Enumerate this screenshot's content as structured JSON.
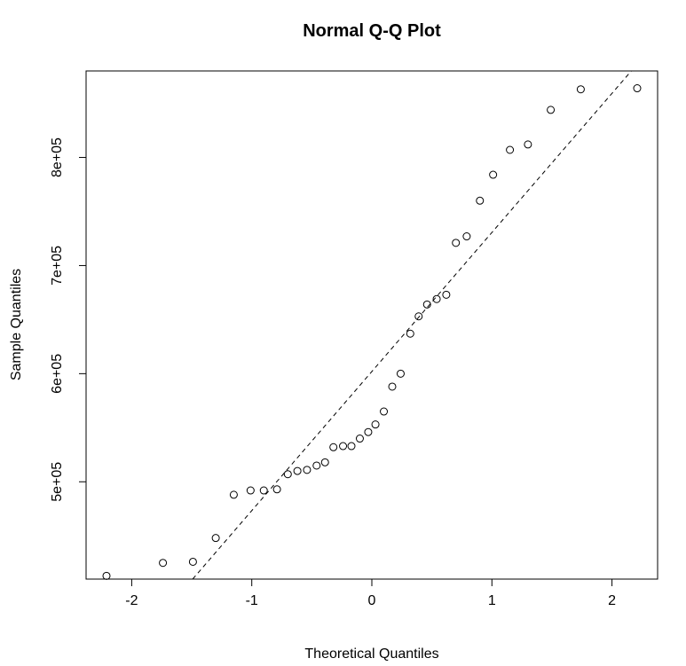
{
  "chart_data": {
    "type": "scatter",
    "title": "Normal Q-Q Plot",
    "xlabel": "Theoretical Quantiles",
    "ylabel": "Sample Quantiles",
    "xlim": [
      -2.38,
      2.38
    ],
    "ylim": [
      410000,
      880000
    ],
    "x_ticks": [
      -2,
      -1,
      0,
      1,
      2
    ],
    "x_tick_labels": [
      "-2",
      "-1",
      "0",
      "1",
      "2"
    ],
    "y_ticks": [
      500000,
      600000,
      700000,
      800000
    ],
    "y_tick_labels": [
      "5e+05",
      "6e+05",
      "7e+05",
      "8e+05"
    ],
    "grid": false,
    "reference_line": {
      "style": "dashed",
      "points": [
        [
          -1.5,
          409000
        ],
        [
          2.2,
          885000
        ]
      ]
    },
    "points": [
      {
        "x": -2.21,
        "y": 413000
      },
      {
        "x": -1.74,
        "y": 425000
      },
      {
        "x": -1.49,
        "y": 426000
      },
      {
        "x": -1.3,
        "y": 448000
      },
      {
        "x": -1.15,
        "y": 488000
      },
      {
        "x": -1.01,
        "y": 492000
      },
      {
        "x": -0.9,
        "y": 492000
      },
      {
        "x": -0.79,
        "y": 493000
      },
      {
        "x": -0.7,
        "y": 507000
      },
      {
        "x": -0.62,
        "y": 510000
      },
      {
        "x": -0.54,
        "y": 511000
      },
      {
        "x": -0.46,
        "y": 515000
      },
      {
        "x": -0.39,
        "y": 518000
      },
      {
        "x": -0.32,
        "y": 532000
      },
      {
        "x": -0.24,
        "y": 533000
      },
      {
        "x": -0.17,
        "y": 533000
      },
      {
        "x": -0.1,
        "y": 540000
      },
      {
        "x": -0.03,
        "y": 546000
      },
      {
        "x": 0.03,
        "y": 553000
      },
      {
        "x": 0.1,
        "y": 565000
      },
      {
        "x": 0.17,
        "y": 588000
      },
      {
        "x": 0.24,
        "y": 600000
      },
      {
        "x": 0.32,
        "y": 637000
      },
      {
        "x": 0.39,
        "y": 653000
      },
      {
        "x": 0.46,
        "y": 664000
      },
      {
        "x": 0.54,
        "y": 669000
      },
      {
        "x": 0.62,
        "y": 673000
      },
      {
        "x": 0.7,
        "y": 721000
      },
      {
        "x": 0.79,
        "y": 727000
      },
      {
        "x": 0.9,
        "y": 760000
      },
      {
        "x": 1.01,
        "y": 784000
      },
      {
        "x": 1.15,
        "y": 807000
      },
      {
        "x": 1.3,
        "y": 812000
      },
      {
        "x": 1.49,
        "y": 844000
      },
      {
        "x": 1.74,
        "y": 863000
      },
      {
        "x": 2.21,
        "y": 864000
      }
    ]
  }
}
